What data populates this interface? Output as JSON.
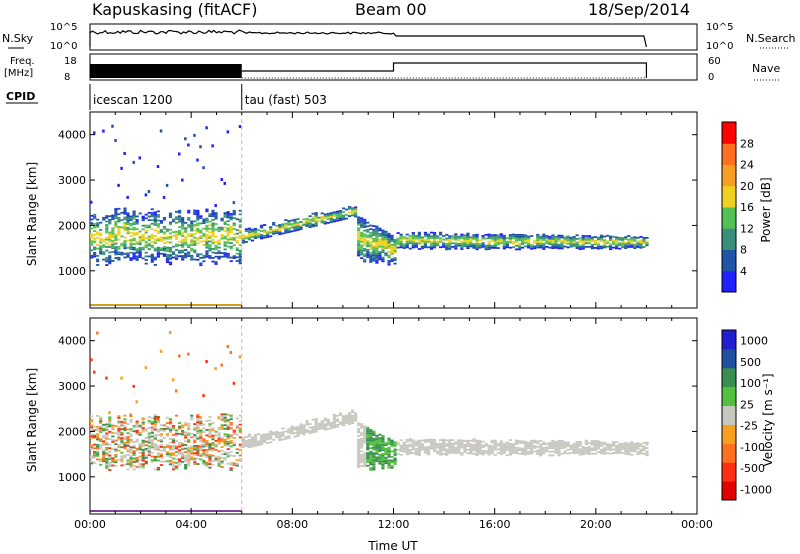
{
  "header": {
    "station": "Kapuskasing (fitACF)",
    "beam": "Beam 00",
    "date": "18/Sep/2014"
  },
  "panels": {
    "nsky_label": "N.Sky",
    "nsearch_label": "N.Search",
    "freq_label_1": "Freq.",
    "freq_label_2": "[MHz]",
    "nave_label": "Nave",
    "cpid_label": "CPID",
    "sky_ticks": [
      "10^5",
      "10^0"
    ],
    "search_ticks": [
      "10^5",
      "10^0"
    ],
    "freq_ticks": [
      "18",
      "8"
    ],
    "nave_ticks": [
      "60",
      "0"
    ],
    "cpid_segments": [
      {
        "label": "icescan 1200",
        "start_h": 0.0,
        "end_h": 6.0
      },
      {
        "label": "tau (fast) 503",
        "start_h": 6.0,
        "end_h": 22.0
      }
    ]
  },
  "chart_data": [
    {
      "type": "heatmap",
      "title": "",
      "ylabel": "Slant Range [km]",
      "xlabel": "",
      "x_range_hours": [
        0,
        24
      ],
      "ylim": [
        180,
        4500
      ],
      "y_ticks": [
        "1000",
        "2000",
        "3000",
        "4000"
      ],
      "colorbar_label": "Power [dB]",
      "colorbar_ticks": [
        "4",
        "8",
        "12",
        "16",
        "20",
        "24",
        "28"
      ],
      "colorbar_colors": [
        "#2020ff",
        "#1f54a8",
        "#3a8f7a",
        "#55c055",
        "#f0d020",
        "#f5a020",
        "#ff7020",
        "#ff0000"
      ],
      "data_extent_hours": [
        0,
        22
      ]
    },
    {
      "type": "heatmap",
      "title": "",
      "ylabel": "Slant Range [km]",
      "xlabel": "Time UT",
      "x_range_hours": [
        0,
        24
      ],
      "x_tick_labels": [
        "00:00",
        "04:00",
        "08:00",
        "12:00",
        "16:00",
        "20:00",
        "00:00"
      ],
      "ylim": [
        180,
        4500
      ],
      "y_ticks": [
        "1000",
        "2000",
        "3000",
        "4000"
      ],
      "colorbar_label": "Velocity [m s⁻¹]",
      "colorbar_ticks": [
        "1000",
        "500",
        "100",
        "25",
        "-25",
        "-100",
        "-500",
        "-1000"
      ],
      "colorbar_colors": [
        "#2020d0",
        "#2050a0",
        "#3a8f50",
        "#55c040",
        "#c8c8c0",
        "#f5a020",
        "#ff7020",
        "#ff3010",
        "#e00000"
      ],
      "data_extent_hours": [
        0,
        22
      ]
    }
  ]
}
